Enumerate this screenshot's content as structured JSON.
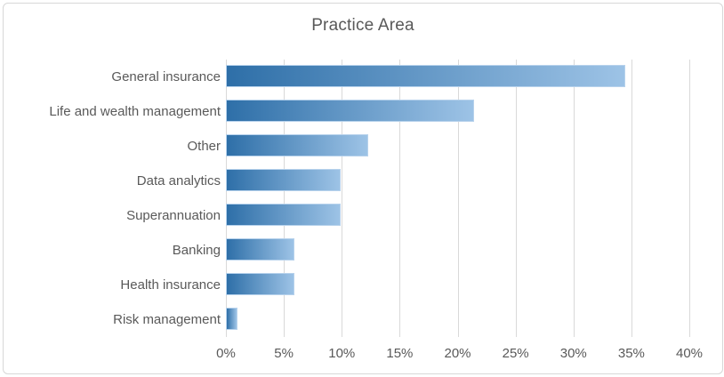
{
  "chart_data": {
    "type": "bar",
    "orientation": "horizontal",
    "title": "Practice Area",
    "categories": [
      "General insurance",
      "Life and wealth management",
      "Other",
      "Data analytics",
      "Superannuation",
      "Banking",
      "Health insurance",
      "Risk management"
    ],
    "values": [
      34.5,
      21.4,
      12.3,
      9.9,
      9.9,
      5.9,
      5.9,
      1.0
    ],
    "value_unit": "%",
    "xlabel": "",
    "ylabel": "",
    "xlim": [
      0,
      40
    ],
    "x_tick_step": 5,
    "x_tick_labels": [
      "0%",
      "5%",
      "10%",
      "15%",
      "20%",
      "25%",
      "30%",
      "35%",
      "40%"
    ],
    "grid": true,
    "legend": false,
    "colors": {
      "bar_gradient_start": "#2E6FA8",
      "bar_gradient_end": "#9DC3E6",
      "bar_border": "#B7D2EC",
      "gridline": "#D9D9D9",
      "text": "#595959",
      "chart_border": "#D7D7D7",
      "background": "#FFFFFF"
    }
  }
}
